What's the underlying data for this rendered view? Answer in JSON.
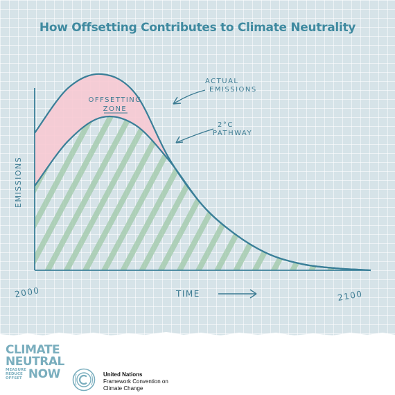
{
  "title": "How Offsetting Contributes to Climate Neutrality",
  "labels": {
    "offsetting_line1": "OFFSETTING",
    "offsetting_line2": "ZONE",
    "actual_line1": "ACTUAL",
    "actual_line2": "EMISSIONS",
    "pathway_line1": "2°C",
    "pathway_line2": "PATHWAY",
    "y_axis": "EMISSIONS",
    "x_axis": "TIME",
    "x_start": "2000",
    "x_end": "2100"
  },
  "colors": {
    "line": "#3a7f98",
    "offset_fill": "#f7c9d3",
    "hatch": "#a6ccb0",
    "title": "#3f8aa0"
  },
  "chart_data": {
    "type": "line",
    "x": [
      2000,
      2010,
      2020,
      2030,
      2040,
      2050,
      2060,
      2070,
      2080,
      2090,
      2100
    ],
    "series": [
      {
        "name": "ACTUAL EMISSIONS",
        "values": [
          0.7,
          0.93,
          1.0,
          0.9,
          0.57,
          0.33,
          0.18,
          0.08,
          0.03,
          0.01,
          0.0
        ]
      },
      {
        "name": "2°C PATHWAY",
        "values": [
          0.43,
          0.66,
          0.78,
          0.74,
          0.56,
          0.33,
          0.18,
          0.08,
          0.03,
          0.01,
          0.0
        ]
      }
    ],
    "xlim": [
      2000,
      2100
    ]
  },
  "footer": {
    "cn_line1": "CLIMATE",
    "cn_line2": "NEUTRAL",
    "cn_small1": "MEASURE",
    "cn_small2": "REDUCE",
    "cn_small3": "OFFSET",
    "cn_now": "NOW",
    "un_line1": "United Nations",
    "un_line2": "Framework Convention on",
    "un_line3": "Climate Change",
    "emblem_icon": "un-emblem-icon"
  }
}
